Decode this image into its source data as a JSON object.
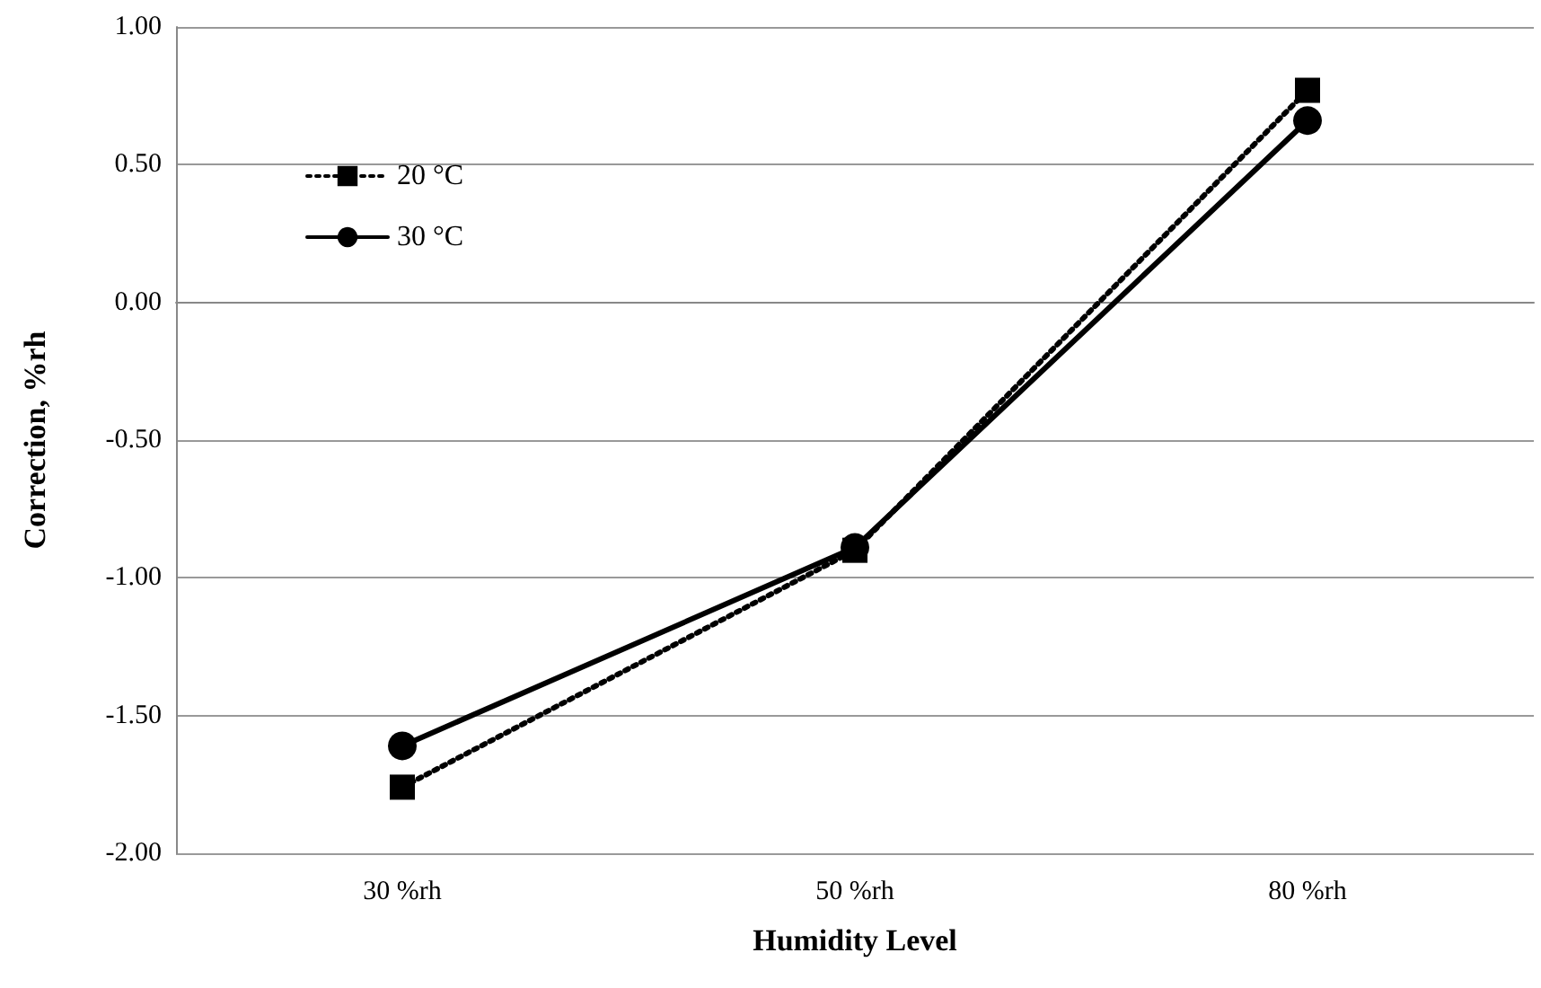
{
  "chart_data": {
    "type": "line",
    "xlabel": "Humidity Level",
    "ylabel": "Correction, %rh",
    "categories": [
      "30 %rh",
      "50 %rh",
      "80 %rh"
    ],
    "series": [
      {
        "name": "20 °C",
        "color": "#000000",
        "marker": "square",
        "line_style": "dotted",
        "values": [
          -1.76,
          -0.9,
          0.77
        ]
      },
      {
        "name": "30 °C",
        "color": "#000000",
        "marker": "circle",
        "line_style": "solid",
        "values": [
          -1.61,
          -0.89,
          0.66
        ]
      }
    ],
    "ylim": [
      -2,
      1
    ],
    "yticks": [
      {
        "value": -2,
        "label": "-2.00"
      },
      {
        "value": -1.5,
        "label": "-1.50"
      },
      {
        "value": -1,
        "label": "-1.00"
      },
      {
        "value": -0.5,
        "label": "-0.50"
      },
      {
        "value": 0,
        "label": "0.00"
      },
      {
        "value": 0.5,
        "label": "0.50"
      },
      {
        "value": 1,
        "label": "1.00"
      }
    ],
    "grid": "y",
    "legend": "top left"
  }
}
